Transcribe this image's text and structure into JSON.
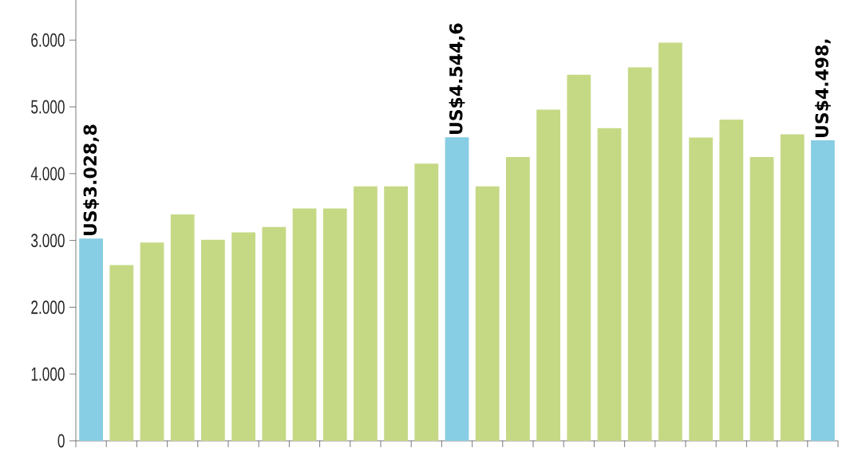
{
  "chart_data": {
    "type": "bar",
    "categories": [
      null,
      null,
      null,
      null,
      null,
      null,
      null,
      null,
      null,
      null,
      null,
      null,
      null,
      null,
      null,
      null,
      null,
      null,
      null,
      null,
      null,
      null,
      null,
      null,
      null
    ],
    "values": [
      3028.8,
      2630,
      2970,
      3390,
      3010,
      3120,
      3200,
      3480,
      3480,
      3810,
      3810,
      4150,
      4544.6,
      3810,
      4250,
      4960,
      5480,
      4680,
      5590,
      5960,
      4540,
      4810,
      4250,
      4590,
      4498
    ],
    "colors": [
      "#87cde3",
      "#c5d985",
      "#c5d985",
      "#c5d985",
      "#c5d985",
      "#c5d985",
      "#c5d985",
      "#c5d985",
      "#c5d985",
      "#c5d985",
      "#c5d985",
      "#c5d985",
      "#87cde3",
      "#c5d985",
      "#c5d985",
      "#c5d985",
      "#c5d985",
      "#c5d985",
      "#c5d985",
      "#c5d985",
      "#c5d985",
      "#c5d985",
      "#c5d985",
      "#c5d985",
      "#87cde3"
    ],
    "value_labels": [
      "US$3.028,8",
      null,
      null,
      null,
      null,
      null,
      null,
      null,
      null,
      null,
      null,
      null,
      "US$4.544,6",
      null,
      null,
      null,
      null,
      null,
      null,
      null,
      null,
      null,
      null,
      null,
      "US$4.498,"
    ],
    "ylim": [
      0,
      6600
    ],
    "yticks": [
      0,
      {
        "value": 1000,
        "label": "1.000"
      },
      {
        "value": 2000,
        "label": "2.000"
      },
      {
        "value": 3000,
        "label": "3.000"
      },
      {
        "value": 4000,
        "label": "4.000"
      },
      {
        "value": 5000,
        "label": "5.000"
      },
      {
        "value": 6000,
        "label": "6.000"
      }
    ],
    "grid": false,
    "tick_labels": "y"
  }
}
